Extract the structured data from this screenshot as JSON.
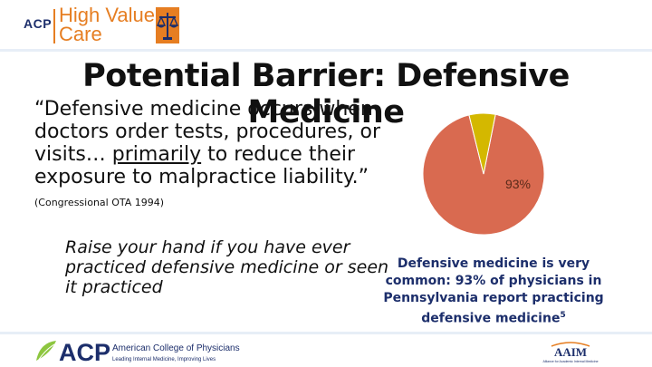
{
  "header": {
    "logo_acp": "ACP",
    "logo_line1": "High Value",
    "logo_line2": "Care"
  },
  "slide": {
    "title": "Potential Barrier: Defensive Medicine",
    "quote_part1": "“Defensive medicine occurs when doctors order tests, procedures, or visits… ",
    "quote_underlined": "primarily",
    "quote_part2": " to reduce their exposure to malpractice liability.” ",
    "quote_citation": "(Congressional OTA 1994)",
    "prompt": "Raise your hand if you have ever practiced defensive medicine or seen it practiced",
    "caption": "Defensive medicine is very common: 93% of physicians in Pennsylvania report practicing defensive medicine",
    "caption_sup": "5"
  },
  "chart_data": {
    "type": "pie",
    "values": [
      93,
      7
    ],
    "slice_labels": [
      "93%",
      ""
    ],
    "colors": [
      "#d96a50",
      "#d4b800"
    ]
  },
  "footer": {
    "acp_logo_text": "ACP",
    "acp_logo_name": "American College of Physicians",
    "acp_logo_tagline": "Leading Internal Medicine, Improving Lives",
    "aaim_logo_text": "AAIM",
    "aaim_logo_tagline": "Alliance for Academic Internal Medicine"
  }
}
